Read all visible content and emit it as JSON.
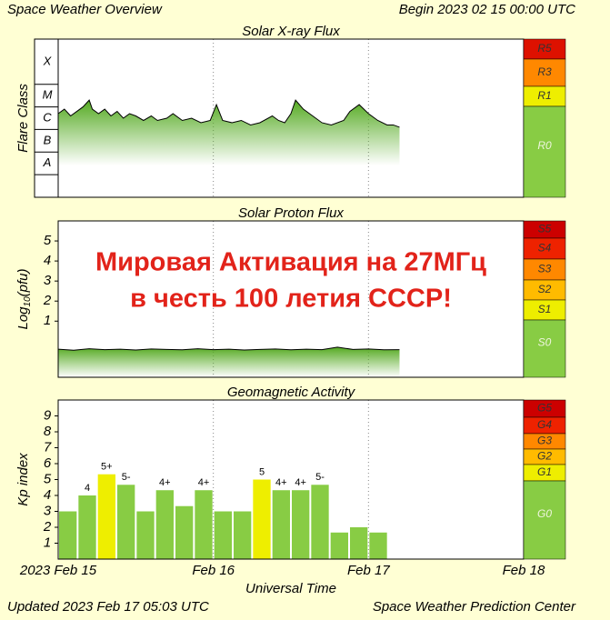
{
  "header": {
    "title": "Space Weather Overview",
    "begin": "Begin 2023 02 15 00:00 UTC"
  },
  "footer": {
    "updated": "Updated 2023 Feb 17 05:03 UTC",
    "center": "Space Weather Prediction Center"
  },
  "xaxis": {
    "label": "Universal Time",
    "xlim": [
      0,
      3
    ],
    "xticks": [
      {
        "value": 0,
        "label": "2023 Feb 15"
      },
      {
        "value": 1,
        "label": "Feb 16"
      },
      {
        "value": 2,
        "label": "Feb 17"
      },
      {
        "value": 3,
        "label": "Feb 18"
      }
    ]
  },
  "chart_data": [
    {
      "type": "area",
      "title": "Solar X-ray Flux",
      "ylabel": "Flare Class",
      "color": "#55aa22",
      "ylim": [
        -9,
        -2
      ],
      "yticks": [
        {
          "value": -4,
          "label": "X"
        },
        {
          "value": -5,
          "label": "M"
        },
        {
          "value": -6,
          "label": "C"
        },
        {
          "value": -7,
          "label": "B"
        },
        {
          "value": -8,
          "label": "A"
        }
      ],
      "x": [
        0,
        0.04,
        0.08,
        0.12,
        0.16,
        0.2,
        0.22,
        0.26,
        0.3,
        0.34,
        0.38,
        0.42,
        0.46,
        0.5,
        0.55,
        0.6,
        0.64,
        0.7,
        0.74,
        0.8,
        0.86,
        0.92,
        0.98,
        1.02,
        1.06,
        1.12,
        1.18,
        1.24,
        1.3,
        1.38,
        1.42,
        1.46,
        1.5,
        1.53,
        1.58,
        1.64,
        1.7,
        1.76,
        1.84,
        1.88,
        1.94,
        2.0,
        2.06,
        2.12,
        2.16,
        2.2
      ],
      "values": [
        -5.3,
        -5.1,
        -5.4,
        -5.2,
        -5.0,
        -4.7,
        -5.1,
        -5.3,
        -5.1,
        -5.4,
        -5.2,
        -5.5,
        -5.3,
        -5.4,
        -5.6,
        -5.4,
        -5.6,
        -5.5,
        -5.3,
        -5.6,
        -5.5,
        -5.7,
        -5.6,
        -4.9,
        -5.6,
        -5.7,
        -5.6,
        -5.8,
        -5.7,
        -5.4,
        -5.6,
        -5.7,
        -5.3,
        -4.7,
        -5.1,
        -5.4,
        -5.7,
        -5.8,
        -5.6,
        -5.2,
        -4.9,
        -5.3,
        -5.6,
        -5.8,
        -5.8,
        -5.9
      ],
      "scale": [
        {
          "label": "R5",
          "color": "#dd1100"
        },
        {
          "label": "R3",
          "color": "#ff8800"
        },
        {
          "label": "R1",
          "color": "#eeee00"
        },
        {
          "label": "R0",
          "color": "#88cc44"
        }
      ]
    },
    {
      "type": "area",
      "title": "Solar Proton Flux",
      "ylabel": [
        "Log",
        "10",
        "(pfu)"
      ],
      "color": "#55aa22",
      "ylim": [
        -1.8,
        6
      ],
      "yticks": [
        1,
        2,
        3,
        4,
        5
      ],
      "annotations": [
        "Мировая Активация на 27МГц",
        "в честь 100 летия СССР!"
      ],
      "x": [
        0,
        0.1,
        0.2,
        0.3,
        0.4,
        0.5,
        0.6,
        0.7,
        0.8,
        0.9,
        1.0,
        1.1,
        1.2,
        1.3,
        1.4,
        1.5,
        1.6,
        1.7,
        1.8,
        1.9,
        2.0,
        2.1,
        2.2
      ],
      "values": [
        -0.4,
        -0.45,
        -0.38,
        -0.42,
        -0.4,
        -0.44,
        -0.39,
        -0.41,
        -0.43,
        -0.38,
        -0.42,
        -0.4,
        -0.44,
        -0.41,
        -0.39,
        -0.43,
        -0.4,
        -0.42,
        -0.3,
        -0.41,
        -0.39,
        -0.43,
        -0.42
      ],
      "scale": [
        {
          "label": "S5",
          "color": "#cc0000"
        },
        {
          "label": "S4",
          "color": "#ee2200"
        },
        {
          "label": "S3",
          "color": "#ff8800"
        },
        {
          "label": "S2",
          "color": "#ffbb00"
        },
        {
          "label": "S1",
          "color": "#eeee00"
        },
        {
          "label": "S0",
          "color": "#88cc44"
        }
      ]
    },
    {
      "type": "bar",
      "title": "Geomagnetic Activity",
      "ylabel": "Kp index",
      "ylim": [
        0,
        10
      ],
      "yticks": [
        1,
        2,
        3,
        4,
        5,
        6,
        7,
        8,
        9
      ],
      "width": 0.125,
      "x": [
        0,
        0.125,
        0.25,
        0.375,
        0.5,
        0.625,
        0.75,
        0.875,
        1,
        1.125,
        1.25,
        1.375,
        1.5,
        1.625,
        1.75,
        1.875,
        2
      ],
      "values": [
        3,
        4,
        5.33,
        4.67,
        3,
        4.33,
        3.33,
        4.33,
        3,
        3,
        5,
        4.33,
        4.33,
        4.67,
        1.67,
        2,
        1.67
      ],
      "value_labels": [
        null,
        "4",
        "5+",
        "5-",
        null,
        "4+",
        null,
        "4+",
        null,
        null,
        "5",
        "4+",
        "4+",
        "5-",
        null,
        null,
        null
      ],
      "colors": [
        "#88cc44",
        "#88cc44",
        "#eeee00",
        "#88cc44",
        "#88cc44",
        "#88cc44",
        "#88cc44",
        "#88cc44",
        "#88cc44",
        "#88cc44",
        "#eeee00",
        "#88cc44",
        "#88cc44",
        "#88cc44",
        "#88cc44",
        "#88cc44",
        "#88cc44"
      ],
      "scale": [
        {
          "label": "G5",
          "color": "#cc0000"
        },
        {
          "label": "G4",
          "color": "#ee2200"
        },
        {
          "label": "G3",
          "color": "#ff8800"
        },
        {
          "label": "G2",
          "color": "#ffbb00"
        },
        {
          "label": "G1",
          "color": "#eeee00"
        },
        {
          "label": "G0",
          "color": "#88cc44"
        }
      ]
    }
  ]
}
